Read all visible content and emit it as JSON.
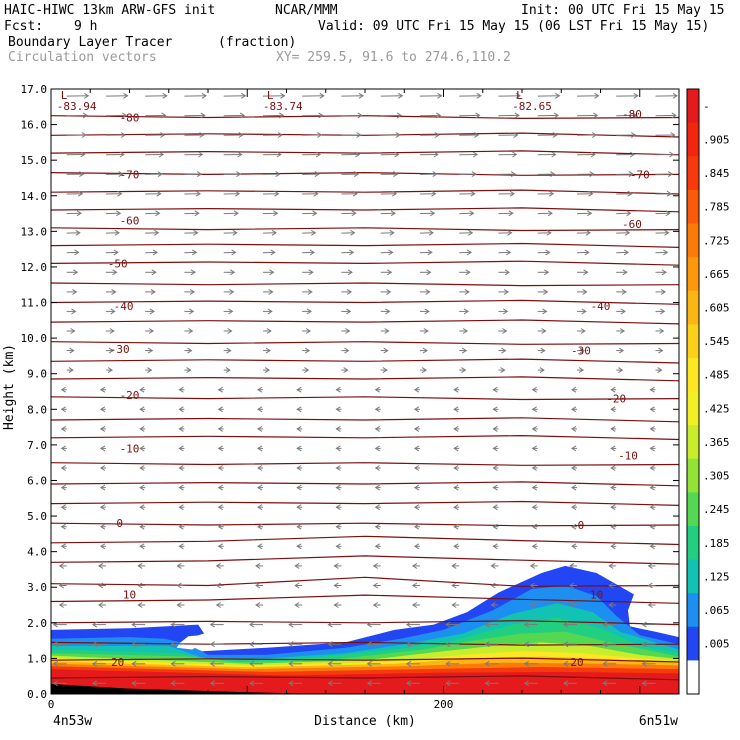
{
  "header": {
    "model": "HAIC-HIWC 13km ARW-GFS init",
    "org": "NCAR/MMM",
    "init": "Init: 00 UTC Fri 15 May 15",
    "fcst_label": "Fcst:",
    "fcst_value": "9 h",
    "valid": "Valid: 09 UTC Fri 15 May 15 (06 LST Fri 15 May 15)",
    "field": "Boundary Layer Tracer",
    "units": "(fraction)",
    "vectors": "Circulation vectors",
    "xy": "XY= 259.5, 91.6 to 274.6,110.2"
  },
  "chart_data": {
    "type": "heatmap",
    "ylabel": "Height (km)",
    "xlabel": "Distance (km)",
    "ylim": [
      0,
      17
    ],
    "xlim": [
      0,
      320
    ],
    "y_ticks": [
      "0.0",
      "1.0",
      "2.0",
      "3.0",
      "4.0",
      "5.0",
      "6.0",
      "7.0",
      "8.0",
      "9.0",
      "10.0",
      "11.0",
      "12.0",
      "13.0",
      "14.0",
      "15.0",
      "16.0",
      "17.0"
    ],
    "x_ticks": [
      {
        "x": 0,
        "label": "0"
      },
      {
        "x": 200,
        "label": "200"
      }
    ],
    "x_endpoints": {
      "left": "4n53w",
      "right": "6n51w"
    },
    "colorbar": {
      "labels": [
        "-",
        ".905",
        ".845",
        ".785",
        ".725",
        ".665",
        ".605",
        ".545",
        ".485",
        ".425",
        ".365",
        ".305",
        ".245",
        ".185",
        ".125",
        ".065",
        ".005"
      ],
      "colors": [
        "#e41a1c",
        "#f2260f",
        "#f63a0c",
        "#fa5a0a",
        "#fb7a0a",
        "#fc980c",
        "#fcb512",
        "#fdd019",
        "#fde624",
        "#f2ef26",
        "#c9ed2c",
        "#92e336",
        "#55d851",
        "#22cf80",
        "#12c2b2",
        "#1c8ff0",
        "#2346f5",
        "#ffffff"
      ]
    },
    "contour_labels": [
      {
        "value": "-80",
        "positions": [
          [
            40,
            16.2
          ],
          [
            296,
            16.3
          ]
        ]
      },
      {
        "value": "-70",
        "positions": [
          [
            40,
            14.6
          ],
          [
            300,
            14.6
          ]
        ]
      },
      {
        "value": "-60",
        "positions": [
          [
            40,
            13.3
          ],
          [
            296,
            13.2
          ]
        ]
      },
      {
        "value": "-50",
        "positions": [
          [
            34,
            12.1
          ]
        ]
      },
      {
        "value": "-40",
        "positions": [
          [
            37,
            10.9
          ],
          [
            280,
            10.9
          ]
        ]
      },
      {
        "value": "-30",
        "positions": [
          [
            35,
            9.7
          ],
          [
            270,
            9.65
          ]
        ]
      },
      {
        "value": "-20",
        "positions": [
          [
            40,
            8.4
          ],
          [
            288,
            8.3
          ]
        ]
      },
      {
        "value": "-10",
        "positions": [
          [
            40,
            6.9
          ],
          [
            294,
            6.7
          ]
        ]
      },
      {
        "value": "0",
        "positions": [
          [
            35,
            4.8
          ],
          [
            270,
            4.75
          ]
        ]
      },
      {
        "value": "10",
        "positions": [
          [
            40,
            2.8
          ],
          [
            278,
            2.8
          ]
        ]
      },
      {
        "value": "20",
        "positions": [
          [
            34,
            0.9
          ],
          [
            268,
            0.9
          ]
        ]
      }
    ],
    "lows": [
      {
        "label": "L",
        "value": "-83.94",
        "x": 5
      },
      {
        "label": "L",
        "value": "-83.74",
        "x": 110
      },
      {
        "label": "L",
        "value": "-82.65",
        "x": 237
      }
    ]
  }
}
